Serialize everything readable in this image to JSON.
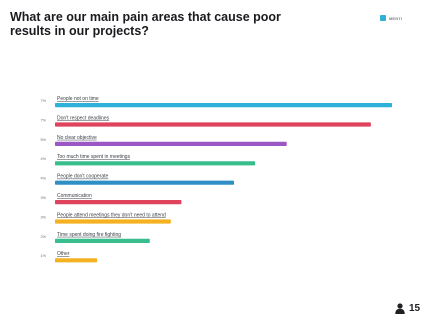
{
  "chart_data": {
    "type": "bar",
    "orientation": "horizontal",
    "title": "What are our main pain areas that cause poor results in our projects?",
    "categories": [
      "People not on time",
      "Don't respect deadlines",
      "No clear objective",
      "Too much time spent in meetings",
      "People don't cooperate",
      "Communication",
      "People attend meetings they don't need to attend",
      "Time spent doing fire fighting",
      "Other"
    ],
    "values": [
      32,
      30,
      22,
      19,
      17,
      12,
      11,
      9,
      4
    ],
    "percent_labels": [
      "7%",
      "7%",
      "5%",
      "4%",
      "4%",
      "3%",
      "3%",
      "2%",
      "1%"
    ],
    "colors": [
      "#2eb0d9",
      "#e0435c",
      "#9b58c4",
      "#37be8c",
      "#2f8fc4",
      "#e0435c",
      "#f4b223",
      "#37be8c",
      "#f4b223"
    ],
    "xlim": [
      0,
      32
    ],
    "grid": false
  },
  "brand": {
    "label": "MENTI"
  },
  "footer": {
    "participant_count": "15",
    "icon": "user-icon"
  }
}
